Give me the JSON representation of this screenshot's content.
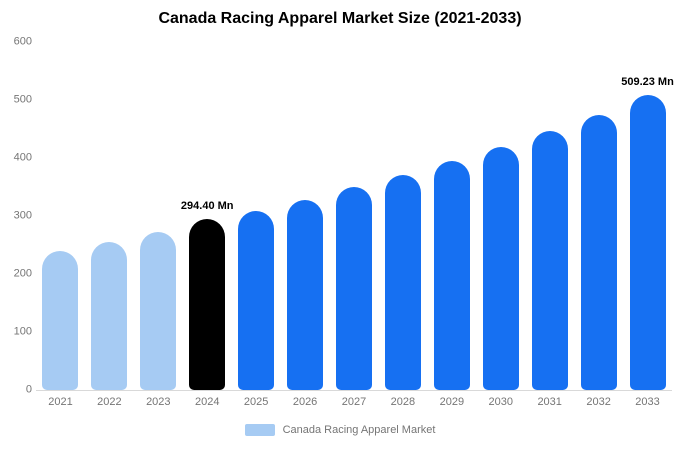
{
  "title": "Canada Racing Apparel Market Size (2021-2033)",
  "legend": {
    "label": "Canada Racing Apparel Market",
    "swatch_color": "#a6cbf3"
  },
  "colors": {
    "past_bar": "#a6cbf3",
    "current_bar": "#000000",
    "forecast_bar": "#1670f2",
    "axis_text": "#757575",
    "annotation_text": "#000000",
    "baseline": "#d9d9d9"
  },
  "chart_data": {
    "type": "bar",
    "title": "Canada Racing Apparel Market Size (2021-2033)",
    "categories": [
      "2021",
      "2022",
      "2023",
      "2024",
      "2025",
      "2026",
      "2027",
      "2028",
      "2029",
      "2030",
      "2031",
      "2032",
      "2033"
    ],
    "values": [
      240,
      255,
      272,
      294.4,
      308,
      328,
      350,
      370,
      394,
      419,
      446,
      474,
      509.23
    ],
    "bar_color_keys": [
      "past_bar",
      "past_bar",
      "past_bar",
      "current_bar",
      "forecast_bar",
      "forecast_bar",
      "forecast_bar",
      "forecast_bar",
      "forecast_bar",
      "forecast_bar",
      "forecast_bar",
      "forecast_bar",
      "forecast_bar"
    ],
    "annotations": [
      {
        "index": 3,
        "text": "294.40 Mn"
      },
      {
        "index": 12,
        "text": "509.23 Mn"
      }
    ],
    "xlabel": "",
    "ylabel": "",
    "ylim": [
      0,
      600
    ],
    "yticks": [
      0,
      100,
      200,
      300,
      400,
      500,
      600
    ],
    "grid": false,
    "legend_position": "bottom",
    "unit": "Mn"
  }
}
